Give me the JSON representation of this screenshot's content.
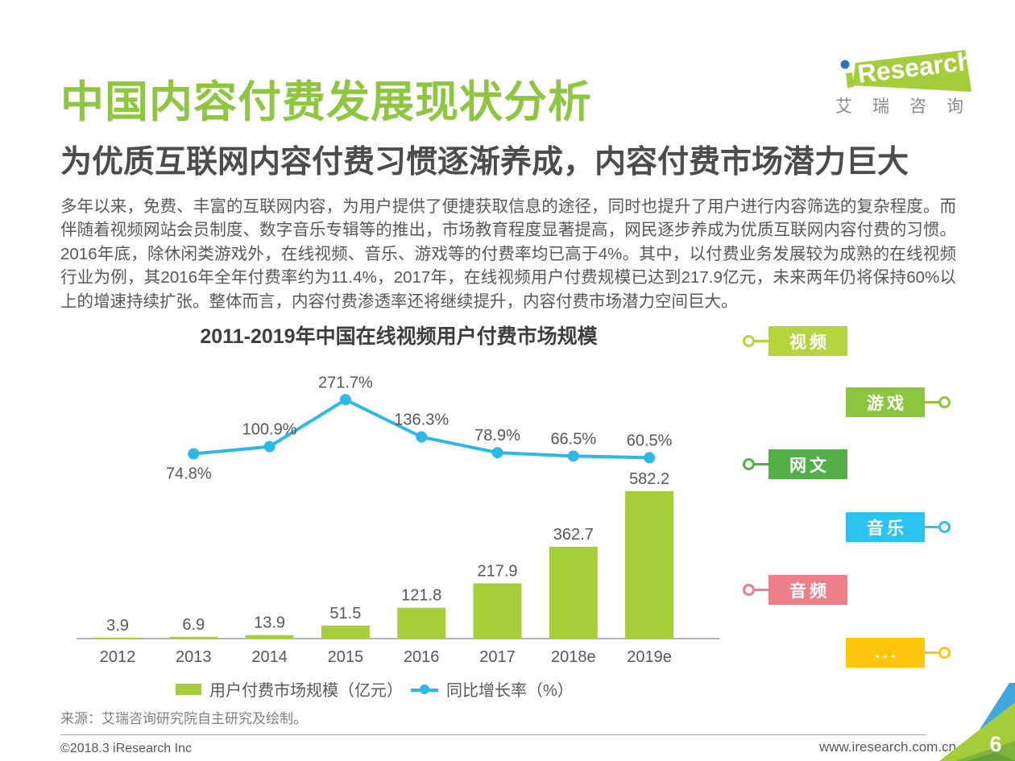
{
  "page": {
    "title": "中国内容付费发展现状分析",
    "subtitle": "为优质互联网内容付费习惯逐渐养成，内容付费市场潜力巨大",
    "body": "多年以来，免费、丰富的互联网内容，为用户提供了便捷获取信息的途径，同时也提升了用户进行内容筛选的复杂程度。而伴随着视频网站会员制度、数字音乐专辑等的推出，市场教育程度显著提高，网民逐步养成为优质互联网内容付费的习惯。2016年底，除休闲类游戏外，在线视频、音乐、游戏等的付费率均已高于4%。其中，以付费业务发展较为成熟的在线视频行业为例，其2016年全年付费率约为11.4%，2017年，在线视频用户付费规模已达到217.9亿元，未来两年仍将保持60%以上的增速持续扩张。整体而言，内容付费渗透率还将继续提升，内容付费市场潜力空间巨大。",
    "source": "来源：艾瑞咨询研究院自主研究及绘制。",
    "footer_left": "©2018.3 iResearch Inc",
    "footer_right": "www.iresearch.com.cn",
    "page_number": "6"
  },
  "logo": {
    "brand": "Research",
    "subtext": "艾瑞咨询",
    "green": "#A4CE39",
    "dot_blue": "#2E75B5"
  },
  "chart_data": {
    "type": "bar",
    "title": "2011-2019年中国在线视频用户付费市场规模",
    "categories": [
      "2012",
      "2013",
      "2014",
      "2015",
      "2016",
      "2017",
      "2018e",
      "2019e"
    ],
    "series": [
      {
        "name": "用户付费市场规模（亿元）",
        "type": "bar",
        "color": "#A5CE39",
        "values": [
          3.9,
          6.9,
          13.9,
          51.5,
          121.8,
          217.9,
          362.7,
          582.2
        ]
      },
      {
        "name": "同比增长率（%）",
        "type": "line",
        "color": "#2CB8E9",
        "values": [
          null,
          74.8,
          100.9,
          271.7,
          136.3,
          78.9,
          66.5,
          60.5
        ]
      }
    ],
    "value_suffix_line": "%",
    "legend_position": "bottom",
    "grid": false,
    "axis_color": "#9B9B9B"
  },
  "tags": {
    "items": [
      {
        "label": "视频",
        "color": "#B6D43D",
        "side": "left"
      },
      {
        "label": "游戏",
        "color": "#8CC63F",
        "side": "right"
      },
      {
        "label": "网文",
        "color": "#55AF49",
        "side": "left"
      },
      {
        "label": "音乐",
        "color": "#2BC3F0",
        "side": "right"
      },
      {
        "label": "音频",
        "color": "#EE7E89",
        "side": "left"
      },
      {
        "label": "...",
        "color": "#FFC60B",
        "side": "right"
      }
    ]
  }
}
